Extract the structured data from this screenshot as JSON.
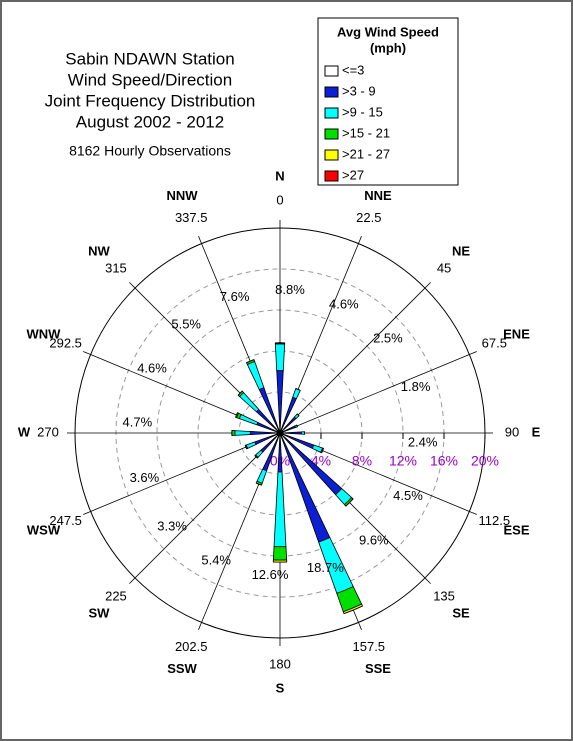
{
  "chart_data": {
    "type": "windrose",
    "title": [
      "Sabin NDAWN Station",
      "Wind Speed/Direction",
      "Joint Frequency Distribution",
      "August 2002 - 2012"
    ],
    "subtitle": "8162 Hourly Observations",
    "legend_title": [
      "Avg Wind Speed",
      "(mph)"
    ],
    "categories": [
      "N",
      "NNE",
      "NE",
      "ENE",
      "E",
      "ESE",
      "SE",
      "SSE",
      "S",
      "SSW",
      "SW",
      "WSW",
      "W",
      "WNW",
      "NW",
      "NNW"
    ],
    "angles": [
      0,
      22.5,
      45,
      67.5,
      90,
      112.5,
      135,
      157.5,
      180,
      202.5,
      225,
      247.5,
      270,
      292.5,
      315,
      337.5
    ],
    "totals": [
      8.8,
      4.6,
      2.5,
      1.8,
      2.4,
      4.5,
      9.6,
      18.7,
      12.6,
      5.4,
      3.3,
      3.6,
      4.7,
      4.6,
      5.5,
      7.6
    ],
    "total_labels": [
      "8.8%",
      "4.6%",
      "2.5%",
      "1.8%",
      "2.4%",
      "4.5%",
      "9.6%",
      "18.7%",
      "12.6%",
      "5.4%",
      "3.3%",
      "3.6%",
      "4.7%",
      "4.6%",
      "5.5%",
      "7.6%"
    ],
    "series": [
      {
        "name": "<=3",
        "color": "#ffffff",
        "values": [
          0.3,
          0.3,
          0.3,
          0.3,
          0.3,
          0.3,
          0.3,
          0.3,
          0.3,
          0.3,
          0.3,
          0.3,
          0.3,
          0.3,
          0.3,
          0.3
        ]
      },
      {
        "name": ">3 - 9",
        "color": "#0c1fd2",
        "values": [
          5.8,
          3.4,
          1.8,
          1.3,
          1.8,
          3.2,
          7.8,
          11,
          3.5,
          3.6,
          2.2,
          2.3,
          2.6,
          2.1,
          2.8,
          4.4
        ]
      },
      {
        "name": ">9 - 15",
        "color": "#00ffff",
        "values": [
          2.6,
          0.9,
          0.4,
          0.2,
          0.3,
          0.9,
          1.3,
          5.3,
          7.3,
          1.3,
          0.7,
          0.9,
          1.5,
          1.8,
          2.2,
          2.7
        ]
      },
      {
        "name": ">15 - 21",
        "color": "#00e000",
        "values": [
          0.1,
          0,
          0,
          0,
          0,
          0.1,
          0.2,
          1.9,
          1.3,
          0.2,
          0.1,
          0.1,
          0.3,
          0.3,
          0.2,
          0.2
        ]
      },
      {
        "name": ">21 - 27",
        "color": "#ffff00",
        "values": [
          0,
          0,
          0,
          0,
          0,
          0,
          0,
          0.2,
          0.2,
          0,
          0,
          0,
          0,
          0.1,
          0,
          0
        ]
      },
      {
        "name": ">27",
        "color": "#ff0000",
        "values": [
          0,
          0,
          0,
          0,
          0,
          0,
          0,
          0,
          0,
          0,
          0,
          0,
          0,
          0,
          0,
          0
        ]
      }
    ],
    "rlim": [
      0,
      20
    ],
    "rticks": [
      {
        "value": 0,
        "label": "0%"
      },
      {
        "value": 4,
        "label": "4%"
      },
      {
        "value": 8,
        "label": "8%"
      },
      {
        "value": 12,
        "label": "12%"
      },
      {
        "value": 16,
        "label": "16%"
      },
      {
        "value": 20,
        "label": "20%"
      }
    ],
    "rtick_color": "#9900cc"
  }
}
